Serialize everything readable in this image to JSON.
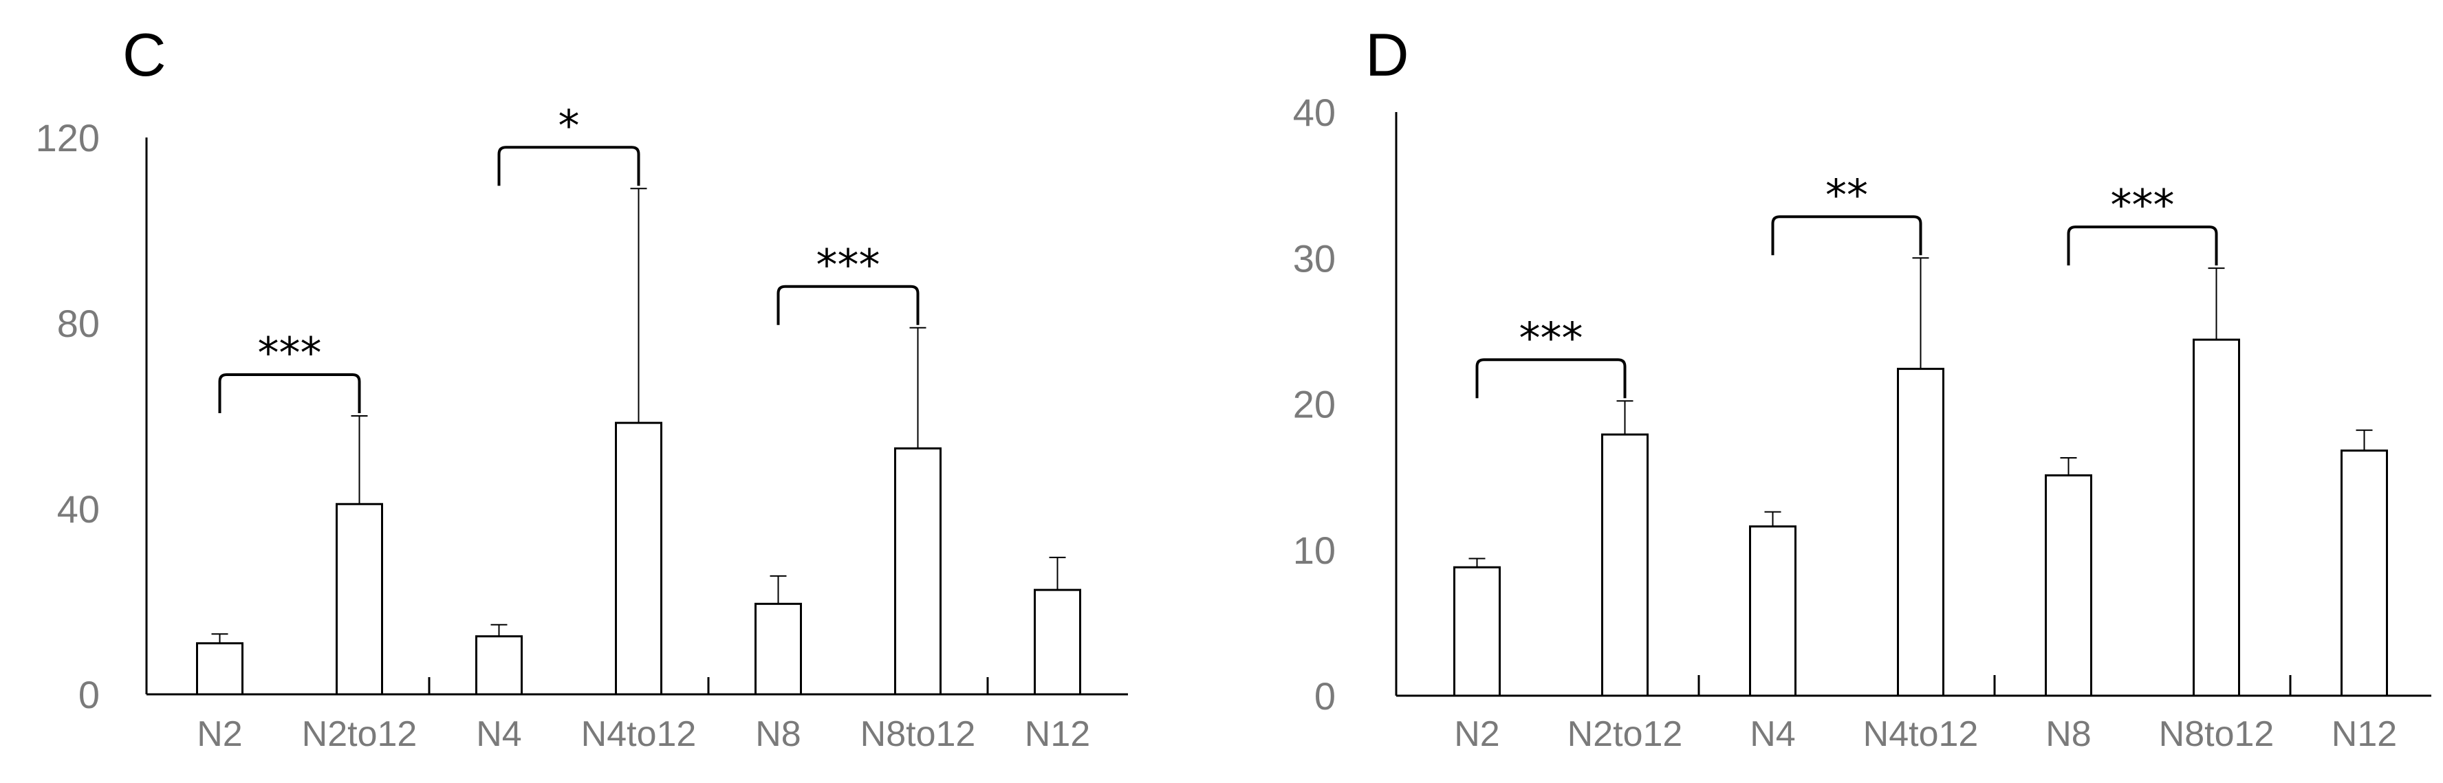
{
  "chart_data": [
    {
      "type": "bar",
      "panel_label": "C",
      "categories": [
        "N2",
        "N2to12",
        "N4",
        "N4to12",
        "N8",
        "N8to12",
        "N12"
      ],
      "values": [
        11,
        41,
        12.5,
        58.5,
        19.5,
        53,
        22.5
      ],
      "error_upper": [
        13,
        60,
        15,
        109,
        25.5,
        79,
        29.5
      ],
      "ylim": [
        0,
        120
      ],
      "yticks": [
        0,
        40,
        80,
        120
      ],
      "title": "",
      "xlabel": "",
      "ylabel": "",
      "significance": [
        {
          "from": 0,
          "to": 1,
          "label": "***"
        },
        {
          "from": 2,
          "to": 3,
          "label": "*"
        },
        {
          "from": 4,
          "to": 5,
          "label": "***"
        }
      ]
    },
    {
      "type": "bar",
      "panel_label": "D",
      "categories": [
        "N2",
        "N2to12",
        "N4",
        "N4to12",
        "N8",
        "N8to12",
        "N12"
      ],
      "values": [
        8.8,
        17.9,
        11.6,
        22.4,
        15.1,
        24.4,
        16.8
      ],
      "error_upper": [
        9.4,
        20.2,
        12.6,
        30,
        16.3,
        29.3,
        18.2
      ],
      "ylim": [
        0,
        40
      ],
      "yticks": [
        0,
        10,
        20,
        30,
        40
      ],
      "title": "",
      "xlabel": "",
      "ylabel": "",
      "significance": [
        {
          "from": 0,
          "to": 1,
          "label": "***"
        },
        {
          "from": 2,
          "to": 3,
          "label": "**"
        },
        {
          "from": 4,
          "to": 5,
          "label": "***"
        }
      ]
    }
  ],
  "colors": {
    "bar_fill": "#ffffff",
    "bar_stroke": "#000000",
    "axis": "#000000",
    "tick_text": "#7a7a7a"
  }
}
